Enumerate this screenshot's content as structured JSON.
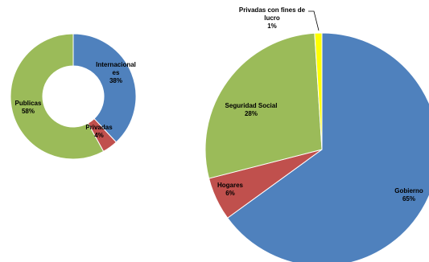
{
  "chart_data": [
    {
      "type": "pie",
      "variant": "donut",
      "slices": [
        {
          "name": "Internacionales",
          "label_lines": [
            "Internacional",
            "es"
          ],
          "pct_label": "38%",
          "value": 38,
          "color": "#4f81bd"
        },
        {
          "name": "Privadas",
          "label_lines": [
            "Privadas"
          ],
          "pct_label": "4%",
          "value": 4,
          "color": "#c0504d"
        },
        {
          "name": "Publicas",
          "label_lines": [
            "Publicas"
          ],
          "pct_label": "58%",
          "value": 58,
          "color": "#9bbb59"
        }
      ]
    },
    {
      "type": "pie",
      "slices": [
        {
          "name": "Gobierno",
          "label_lines": [
            "Gobierno"
          ],
          "pct_label": "65%",
          "value": 65,
          "color": "#4f81bd"
        },
        {
          "name": "Hogares",
          "label_lines": [
            "Hogares"
          ],
          "pct_label": "6%",
          "value": 6,
          "color": "#c0504d"
        },
        {
          "name": "Seguridad Social",
          "label_lines": [
            "Seguridad Social"
          ],
          "pct_label": "28%",
          "value": 28,
          "color": "#9bbb59"
        },
        {
          "name": "Privadas con fines de lucro",
          "label_lines": [
            "Privadas con fines de",
            "lucro"
          ],
          "pct_label": "1%",
          "value": 1,
          "color": "#ffff00"
        }
      ]
    }
  ]
}
